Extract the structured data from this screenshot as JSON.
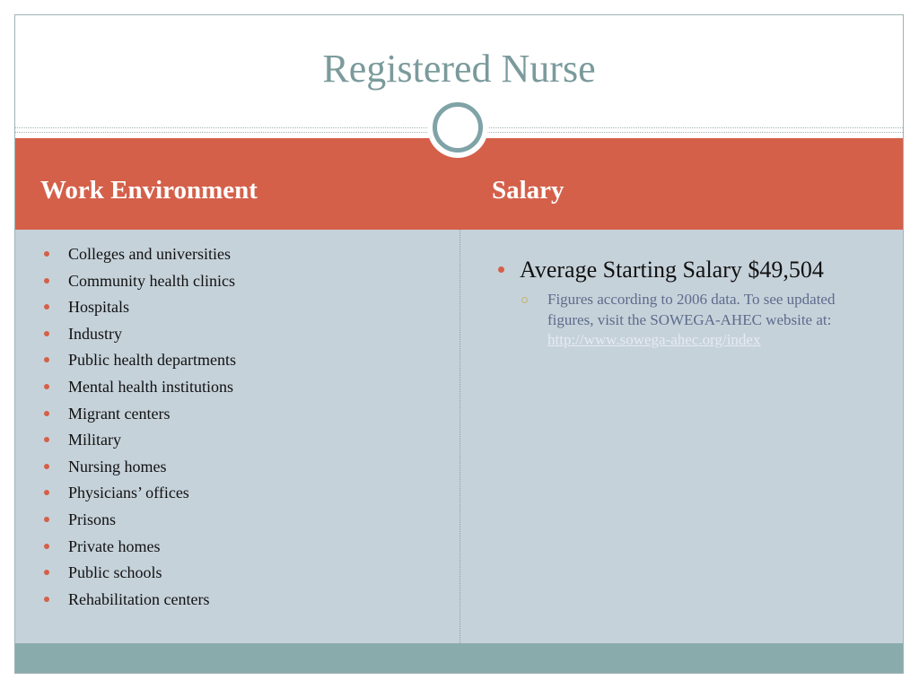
{
  "title": "Registered Nurse",
  "columns": [
    {
      "heading": "Work Environment",
      "items": [
        "Colleges and universities",
        "Community health clinics",
        "Hospitals",
        "Industry",
        "Public health departments",
        "Mental health institutions",
        "Migrant centers",
        "Military",
        "Nursing homes",
        "Physicians’ offices",
        "Prisons",
        "Private homes",
        "Public schools",
        "Rehabilitation centers"
      ]
    },
    {
      "heading": "Salary",
      "items": [
        {
          "text": "Average Starting Salary $49,504",
          "subitems": [
            {
              "text": "Figures according to 2006 data. To see updated figures, visit the SOWEGA-AHEC website at:",
              "link": "http://www.sowega-ahec.org/index"
            }
          ]
        }
      ]
    }
  ]
}
